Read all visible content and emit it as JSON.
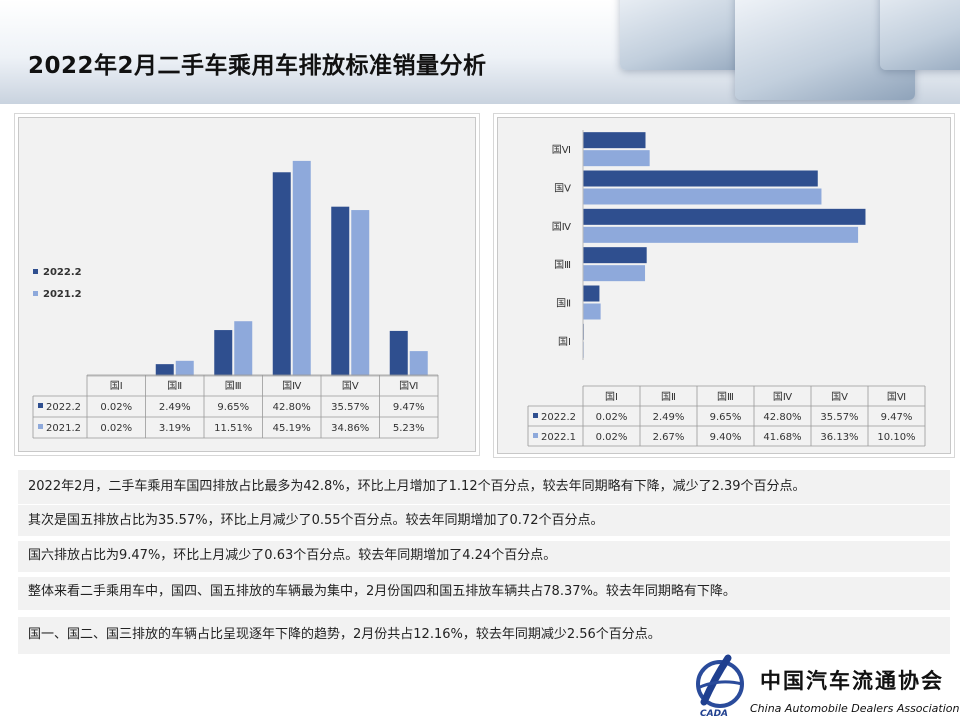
{
  "title": "2022年2月二手车乘用车排放标准销量分析",
  "colors": {
    "dark": "#2f4f8f",
    "light": "#8ea9db"
  },
  "chart_data": [
    {
      "type": "bar",
      "categories": [
        "国Ⅰ",
        "国Ⅱ",
        "国Ⅲ",
        "国Ⅳ",
        "国Ⅴ",
        "国Ⅵ"
      ],
      "series": [
        {
          "name": "2022.2",
          "values": [
            0.02,
            2.49,
            9.65,
            42.8,
            35.57,
            9.47
          ],
          "labels": [
            "0.02%",
            "2.49%",
            "9.65%",
            "42.80%",
            "35.57%",
            "9.47%"
          ]
        },
        {
          "name": "2021.2",
          "values": [
            0.02,
            3.19,
            11.51,
            45.19,
            34.86,
            5.23
          ],
          "labels": [
            "0.02%",
            "3.19%",
            "11.51%",
            "45.19%",
            "34.86%",
            "5.23%"
          ]
        }
      ],
      "legend": "left",
      "grid": false
    },
    {
      "type": "bar",
      "orientation": "horizontal",
      "categories": [
        "国Ⅰ",
        "国Ⅱ",
        "国Ⅲ",
        "国Ⅳ",
        "国Ⅴ",
        "国Ⅵ"
      ],
      "series": [
        {
          "name": "2022.2",
          "values": [
            0.02,
            2.49,
            9.65,
            42.8,
            35.57,
            9.47
          ],
          "labels": [
            "0.02%",
            "2.49%",
            "9.65%",
            "42.80%",
            "35.57%",
            "9.47%"
          ]
        },
        {
          "name": "2022.1",
          "values": [
            0.02,
            2.67,
            9.4,
            41.68,
            36.13,
            10.1
          ],
          "labels": [
            "0.02%",
            "2.67%",
            "9.40%",
            "41.68%",
            "36.13%",
            "10.10%"
          ]
        }
      ],
      "legend": "data-table",
      "grid": false
    }
  ],
  "notes": [
    "2022年2月，二手车乘用车国四排放占比最多为42.8%，环比上月增加了1.12个百分点，较去年同期略有下降，减少了2.39个百分点。",
    "其次是国五排放占比为35.57%，环比上月减少了0.55个百分点。较去年同期增加了0.72个百分点。",
    "国六排放占比为9.47%，环比上月减少了0.63个百分点。较去年同期增加了4.24个百分点。",
    "整体来看二手乘用车中，国四、国五排放的车辆最为集中，2月份国四和国五排放车辆共占78.37%。较去年同期略有下降。",
    "国一、国二、国三排放的车辆占比呈现逐年下降的趋势，2月份共占12.16%，较去年同期减少2.56个百分点。"
  ],
  "logo": {
    "name_cn": "中国汽车流通协会",
    "name_en": "China Automobile Dealers Association",
    "abbr": "CADA"
  }
}
